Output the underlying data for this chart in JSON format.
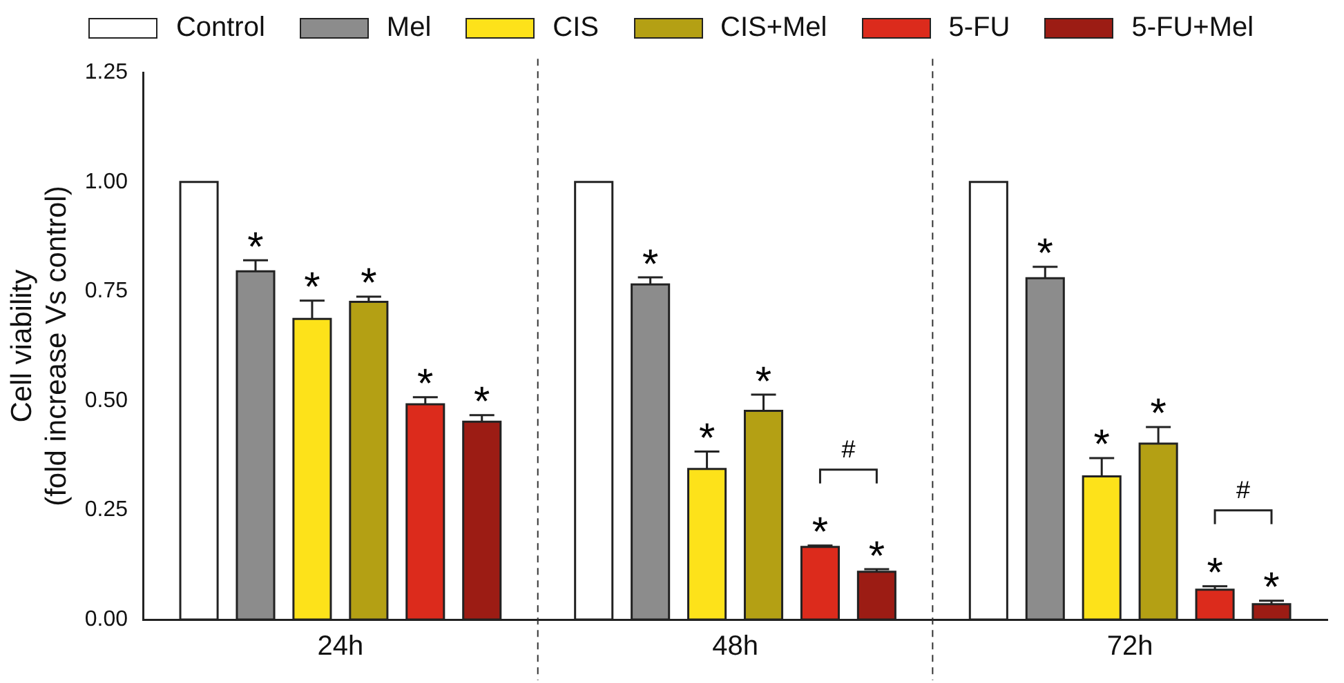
{
  "chart_data": {
    "type": "bar",
    "ylabel": "Cell viability\n(fold increase Vs control)",
    "categories": [
      "24h",
      "48h",
      "72h"
    ],
    "series": [
      {
        "name": "Control",
        "color": "#ffffff",
        "values": [
          1.0,
          1.0,
          1.0
        ],
        "errors": [
          null,
          null,
          null
        ]
      },
      {
        "name": "Mel",
        "color": "#8c8c8c",
        "values": [
          0.796,
          0.766,
          0.78
        ],
        "errors": [
          0.025,
          0.016,
          0.026
        ]
      },
      {
        "name": "CIS",
        "color": "#fde21a",
        "values": [
          0.687,
          0.344,
          0.327
        ],
        "errors": [
          0.042,
          0.04,
          0.042
        ]
      },
      {
        "name": "CIS+Mel",
        "color": "#b4a014",
        "values": [
          0.726,
          0.477,
          0.402
        ],
        "errors": [
          0.012,
          0.037,
          0.038
        ]
      },
      {
        "name": "5-FU",
        "color": "#dc2b1c",
        "values": [
          0.492,
          0.166,
          0.068
        ],
        "errors": [
          0.016,
          0.003,
          0.008
        ]
      },
      {
        "name": "5-FU+Mel",
        "color": "#9c1c14",
        "values": [
          0.452,
          0.109,
          0.035
        ],
        "errors": [
          0.015,
          0.006,
          0.008
        ]
      }
    ],
    "ylim": [
      0,
      1.25
    ],
    "yticks": [
      {
        "value": 0,
        "label": "0.00"
      },
      {
        "value": 0.25,
        "label": "0.25"
      },
      {
        "value": 0.5,
        "label": "0.50"
      },
      {
        "value": 0.75,
        "label": "0.75"
      },
      {
        "value": 1,
        "label": "1.00"
      },
      {
        "value": 1.25,
        "label": "1.25"
      }
    ],
    "annotations": [
      "*",
      "*",
      "*",
      "*",
      "*",
      "*",
      "*",
      "*",
      "*",
      "*",
      "*",
      "*",
      "*",
      "*",
      "*",
      "#",
      "#"
    ],
    "grid": false,
    "legend": "top"
  }
}
